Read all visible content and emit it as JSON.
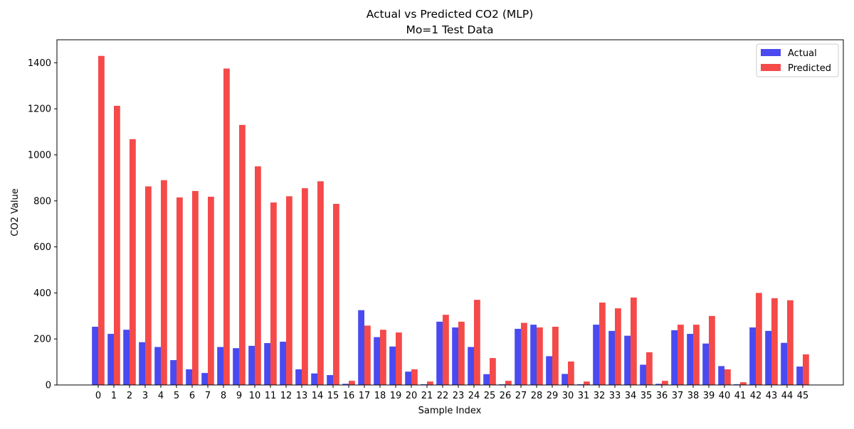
{
  "chart_data": {
    "type": "bar",
    "title": "Actual vs Predicted CO2 (MLP)",
    "subtitle": "Mo=1 Test Data",
    "xlabel": "Sample Index",
    "ylabel": "CO2 Value",
    "ylim": [
      0,
      1500
    ],
    "yticks": [
      0,
      200,
      400,
      600,
      800,
      1000,
      1200,
      1400
    ],
    "grid": false,
    "legend_position": "top-right",
    "categories": [
      "0",
      "1",
      "2",
      "3",
      "4",
      "5",
      "6",
      "7",
      "8",
      "9",
      "10",
      "11",
      "12",
      "13",
      "14",
      "15",
      "16",
      "17",
      "18",
      "19",
      "20",
      "21",
      "22",
      "23",
      "24",
      "25",
      "26",
      "27",
      "28",
      "29",
      "30",
      "31",
      "32",
      "33",
      "34",
      "35",
      "36",
      "37",
      "38",
      "39",
      "40",
      "41",
      "42",
      "43",
      "44",
      "45"
    ],
    "series": [
      {
        "name": "Actual",
        "color": "#4a4af0",
        "values": [
          253,
          222,
          240,
          186,
          165,
          108,
          68,
          52,
          165,
          160,
          170,
          182,
          188,
          68,
          50,
          43,
          5,
          325,
          208,
          167,
          58,
          3,
          275,
          250,
          165,
          47,
          3,
          244,
          262,
          125,
          48,
          3,
          262,
          235,
          214,
          88,
          5,
          238,
          222,
          180,
          82,
          3,
          250,
          235,
          183,
          80
        ]
      },
      {
        "name": "Predicted",
        "color": "#f54a4a",
        "values": [
          1430,
          1213,
          1068,
          863,
          890,
          815,
          843,
          818,
          1375,
          1130,
          950,
          793,
          820,
          855,
          885,
          787,
          18,
          258,
          240,
          228,
          68,
          15,
          305,
          275,
          370,
          117,
          18,
          270,
          250,
          253,
          102,
          15,
          358,
          333,
          380,
          142,
          18,
          262,
          262,
          300,
          68,
          12,
          400,
          377,
          368,
          133
        ]
      }
    ]
  }
}
